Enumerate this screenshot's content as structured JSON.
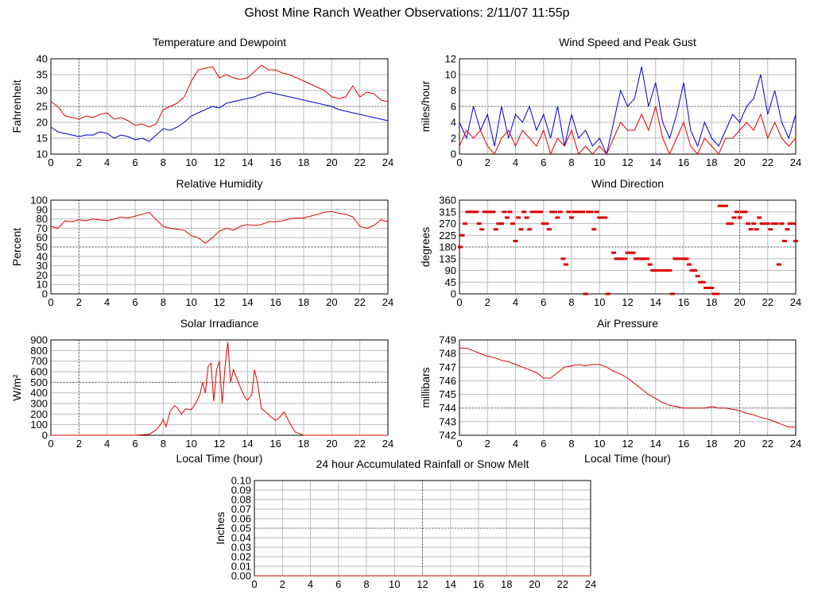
{
  "page": {
    "title": "Ghost Mine Ranch Weather Observations: 2/11/07 11:55p"
  },
  "chart_data": [
    {
      "id": "temp",
      "type": "line",
      "title": "Temperature and Dewpoint",
      "ylabel": "Fahrenheit",
      "xlabel": "",
      "ylim": [
        10,
        40
      ],
      "ytick_step": 5,
      "ytick_decimals": 0,
      "xlim": [
        0,
        24
      ],
      "xtick_step": 2,
      "series": [
        {
          "color": "#dd0000",
          "x": [
            0,
            0.5,
            1,
            1.5,
            2,
            2.5,
            3,
            3.5,
            4,
            4.5,
            5,
            5.5,
            6,
            6.5,
            7,
            7.5,
            8,
            8.5,
            9,
            9.5,
            10,
            10.5,
            11,
            11.5,
            12,
            12.5,
            13,
            13.5,
            14,
            14.5,
            15,
            15.5,
            16,
            16.5,
            17,
            17.5,
            18,
            18.5,
            19,
            19.5,
            20,
            20.5,
            21,
            21.5,
            22,
            22.5,
            23,
            23.5,
            24
          ],
          "y": [
            26.5,
            25,
            22,
            21.5,
            21,
            22,
            21.5,
            22.5,
            23,
            21,
            21.5,
            20.5,
            19,
            19.5,
            18.5,
            19.5,
            24,
            25,
            26,
            28,
            33,
            36.5,
            37,
            37.5,
            34,
            35,
            34,
            33.5,
            34,
            36,
            38,
            36.5,
            36.5,
            35.5,
            35,
            34,
            33,
            32,
            31,
            30,
            28,
            27.5,
            28,
            31.5,
            28,
            29.5,
            29,
            27,
            26.5
          ]
        },
        {
          "color": "#0000cc",
          "x": [
            0,
            0.5,
            1,
            1.5,
            2,
            2.5,
            3,
            3.5,
            4,
            4.5,
            5,
            5.5,
            6,
            6.5,
            7,
            7.5,
            8,
            8.5,
            9,
            9.5,
            10,
            10.5,
            11,
            11.5,
            12,
            12.5,
            13,
            13.5,
            14,
            14.5,
            15,
            15.5,
            16,
            16.5,
            17,
            17.5,
            18,
            18.5,
            19,
            19.5,
            20,
            20.5,
            21,
            21.5,
            22,
            22.5,
            23,
            23.5,
            24
          ],
          "y": [
            18.5,
            17,
            16.5,
            16,
            15.5,
            16,
            16,
            17,
            16.5,
            15,
            16,
            15.5,
            14.5,
            15,
            14,
            16,
            18,
            17.5,
            18.5,
            20,
            22,
            23,
            24,
            25,
            24.5,
            26,
            26.5,
            27,
            27.5,
            28,
            29,
            29.5,
            29,
            28.5,
            28,
            27.5,
            27,
            26.5,
            26,
            25.5,
            25,
            24,
            23.5,
            23,
            22.5,
            22,
            21.5,
            21,
            20.5
          ]
        }
      ]
    },
    {
      "id": "wind",
      "type": "line",
      "title": "Wind Speed and Peak Gust",
      "ylabel": "miles/hour",
      "xlabel": "",
      "ylim": [
        0,
        12
      ],
      "ytick_step": 2,
      "ytick_decimals": 0,
      "xlim": [
        0,
        24
      ],
      "xtick_step": 2,
      "series": [
        {
          "color": "#0000cc",
          "x": [
            0,
            0.5,
            1,
            1.5,
            2,
            2.5,
            3,
            3.5,
            4,
            4.5,
            5,
            5.5,
            6,
            6.5,
            7,
            7.5,
            8,
            8.5,
            9,
            9.5,
            10,
            10.5,
            11,
            11.5,
            12,
            12.5,
            13,
            13.5,
            14,
            14.5,
            15,
            15.5,
            16,
            16.5,
            17,
            17.5,
            18,
            18.5,
            19,
            19.5,
            20,
            20.5,
            21,
            21.5,
            22,
            22.5,
            23,
            23.5,
            24
          ],
          "y": [
            4,
            2,
            6,
            3,
            5,
            1,
            6,
            2,
            5,
            4,
            6,
            3,
            5,
            2,
            6,
            1,
            5,
            2,
            3,
            1,
            2,
            0,
            4,
            8,
            6,
            7,
            11,
            6,
            9,
            4,
            2,
            5,
            9,
            3,
            1,
            4,
            2,
            1,
            3,
            5,
            4,
            6,
            7,
            10,
            5,
            8,
            4,
            2,
            5
          ]
        },
        {
          "color": "#dd0000",
          "x": [
            0,
            0.5,
            1,
            1.5,
            2,
            2.5,
            3,
            3.5,
            4,
            4.5,
            5,
            5.5,
            6,
            6.5,
            7,
            7.5,
            8,
            8.5,
            9,
            9.5,
            10,
            10.5,
            11,
            11.5,
            12,
            12.5,
            13,
            13.5,
            14,
            14.5,
            15,
            15.5,
            16,
            16.5,
            17,
            17.5,
            18,
            18.5,
            19,
            19.5,
            20,
            20.5,
            21,
            21.5,
            22,
            22.5,
            23,
            23.5,
            24
          ],
          "y": [
            1,
            3,
            2,
            3,
            1,
            0,
            2,
            3,
            1,
            3,
            2,
            1,
            3,
            0,
            2,
            1,
            3,
            0,
            1,
            0,
            1,
            0,
            2,
            4,
            3,
            3,
            5,
            3,
            6,
            2,
            0,
            2,
            4,
            1,
            0,
            2,
            1,
            0,
            2,
            2,
            3,
            4,
            3,
            5,
            2,
            4,
            2,
            1,
            2
          ]
        }
      ]
    },
    {
      "id": "humidity",
      "type": "line",
      "title": "Relative Humidity",
      "ylabel": "Percent",
      "xlabel": "",
      "ylim": [
        0,
        100
      ],
      "ytick_step": 10,
      "ytick_decimals": 0,
      "xlim": [
        0,
        24
      ],
      "xtick_step": 2,
      "series": [
        {
          "color": "#dd0000",
          "x": [
            0,
            0.5,
            1,
            1.5,
            2,
            2.5,
            3,
            3.5,
            4,
            4.5,
            5,
            5.5,
            6,
            6.5,
            7,
            7.5,
            8,
            8.5,
            9,
            9.5,
            10,
            10.5,
            11,
            11.5,
            12,
            12.5,
            13,
            13.5,
            14,
            14.5,
            15,
            15.5,
            16,
            16.5,
            17,
            17.5,
            18,
            18.5,
            19,
            19.5,
            20,
            20.5,
            21,
            21.5,
            22,
            22.5,
            23,
            23.5,
            24
          ],
          "y": [
            72,
            70,
            78,
            77,
            79,
            78,
            80,
            79,
            78,
            80,
            82,
            81,
            83,
            85,
            87,
            79,
            72,
            70,
            69,
            68,
            62,
            60,
            54,
            60,
            67,
            70,
            68,
            72,
            74,
            73,
            74,
            77,
            77,
            78,
            80,
            81,
            81,
            83,
            85,
            87,
            88,
            86,
            85,
            82,
            72,
            70,
            73,
            79,
            77
          ]
        }
      ]
    },
    {
      "id": "direction",
      "type": "scatter",
      "title": "Wind Direction",
      "ylabel": "degrees",
      "xlabel": "",
      "ylim": [
        0,
        360
      ],
      "ytick_step": 45,
      "ytick_decimals": 0,
      "xlim": [
        0,
        24
      ],
      "xtick_step": 2,
      "series": [
        {
          "color": "#dd0000",
          "x": [
            0.05,
            0.2,
            0.4,
            0.6,
            0.8,
            1.0,
            1.2,
            1.4,
            1.6,
            1.8,
            2.0,
            2.2,
            2.4,
            2.6,
            2.8,
            3.0,
            3.2,
            3.4,
            3.6,
            3.8,
            4.0,
            4.2,
            4.4,
            4.6,
            4.8,
            5.0,
            5.2,
            5.4,
            5.6,
            5.8,
            6.0,
            6.2,
            6.4,
            6.6,
            6.8,
            7.0,
            7.2,
            7.4,
            7.6,
            7.8,
            8.0,
            8.2,
            8.4,
            8.6,
            8.8,
            9.0,
            9.2,
            9.4,
            9.6,
            9.8,
            10.0,
            10.2,
            10.4,
            10.6,
            11.0,
            11.2,
            11.4,
            11.6,
            11.8,
            12.0,
            12.2,
            12.4,
            12.6,
            12.8,
            13.0,
            13.2,
            13.4,
            13.6,
            13.8,
            14.0,
            14.2,
            14.4,
            14.6,
            14.8,
            15.0,
            15.2,
            15.4,
            15.6,
            15.8,
            16.0,
            16.2,
            16.4,
            16.6,
            16.8,
            17.0,
            17.2,
            17.4,
            17.6,
            17.8,
            18.0,
            18.2,
            18.4,
            18.6,
            18.8,
            19.0,
            19.2,
            19.4,
            19.6,
            19.8,
            20.0,
            20.2,
            20.4,
            20.6,
            20.8,
            21.0,
            21.2,
            21.4,
            21.6,
            21.8,
            22.0,
            22.2,
            22.4,
            22.6,
            22.8,
            23.0,
            23.2,
            23.4,
            23.6,
            23.8,
            24.0
          ],
          "y": [
            180,
            225,
            270,
            315,
            315,
            315,
            315,
            270,
            248,
            315,
            315,
            315,
            315,
            248,
            270,
            270,
            315,
            293,
            315,
            270,
            203,
            293,
            248,
            315,
            293,
            248,
            315,
            315,
            315,
            315,
            270,
            270,
            248,
            315,
            315,
            293,
            315,
            135,
            113,
            315,
            293,
            315,
            315,
            315,
            315,
            0,
            315,
            315,
            248,
            315,
            293,
            293,
            293,
            0,
            158,
            135,
            135,
            135,
            135,
            158,
            158,
            158,
            135,
            135,
            135,
            135,
            135,
            113,
            90,
            90,
            90,
            90,
            90,
            90,
            90,
            0,
            135,
            135,
            135,
            135,
            135,
            113,
            90,
            90,
            68,
            45,
            45,
            23,
            23,
            23,
            0,
            0,
            338,
            338,
            338,
            270,
            270,
            293,
            315,
            293,
            315,
            315,
            270,
            248,
            270,
            248,
            293,
            270,
            270,
            270,
            248,
            270,
            270,
            113,
            270,
            203,
            248,
            270,
            270,
            203
          ]
        }
      ]
    },
    {
      "id": "solar",
      "type": "line",
      "title": "Solar Irradiance",
      "ylabel": "W/m²",
      "xlabel": "Local Time (hour)",
      "ylim": [
        0,
        900
      ],
      "ytick_step": 100,
      "ytick_decimals": 0,
      "xlim": [
        0,
        24
      ],
      "xtick_step": 2,
      "series": [
        {
          "color": "#dd0000",
          "x": [
            0,
            6,
            7,
            7.5,
            7.8,
            8.0,
            8.2,
            8.5,
            8.8,
            9.0,
            9.3,
            9.6,
            10.0,
            10.3,
            10.6,
            10.8,
            11.0,
            11.2,
            11.4,
            11.6,
            11.8,
            12.0,
            12.2,
            12.4,
            12.6,
            12.8,
            13.0,
            13.2,
            13.5,
            13.8,
            14.0,
            14.3,
            14.5,
            14.7,
            15.0,
            15.3,
            15.6,
            16.0,
            16.3,
            16.6,
            17.0,
            17.4,
            18,
            24
          ],
          "y": [
            0,
            0,
            10,
            50,
            100,
            150,
            80,
            230,
            280,
            260,
            200,
            250,
            240,
            300,
            380,
            500,
            400,
            650,
            680,
            320,
            620,
            700,
            300,
            650,
            880,
            500,
            620,
            550,
            450,
            360,
            330,
            380,
            620,
            500,
            250,
            220,
            180,
            140,
            170,
            220,
            120,
            30,
            0,
            0
          ]
        }
      ]
    },
    {
      "id": "pressure",
      "type": "line",
      "title": "Air Pressure",
      "ylabel": "millibars",
      "xlabel": "Local Time (hour)",
      "ylim": [
        742,
        749
      ],
      "ytick_step": 1,
      "ytick_decimals": 0,
      "xlim": [
        0,
        24
      ],
      "xtick_step": 2,
      "series": [
        {
          "color": "#dd0000",
          "x": [
            0,
            0.5,
            1,
            1.5,
            2,
            2.5,
            3,
            3.5,
            4,
            4.5,
            5,
            5.5,
            6,
            6.5,
            7,
            7.5,
            8,
            8.5,
            9,
            9.5,
            10,
            10.5,
            11,
            11.5,
            12,
            12.5,
            13,
            13.5,
            14,
            14.5,
            15,
            15.5,
            16,
            16.5,
            17,
            17.5,
            18,
            18.5,
            19,
            19.5,
            20,
            20.5,
            21,
            21.5,
            22,
            22.5,
            23,
            23.5,
            24
          ],
          "y": [
            748.4,
            748.4,
            748.2,
            748.0,
            747.8,
            747.7,
            747.5,
            747.4,
            747.2,
            747.0,
            746.8,
            746.6,
            746.2,
            746.2,
            746.6,
            747.0,
            747.1,
            747.2,
            747.1,
            747.2,
            747.2,
            747.0,
            746.7,
            746.5,
            746.2,
            745.8,
            745.4,
            745.0,
            744.7,
            744.4,
            744.2,
            744.1,
            744.0,
            744.0,
            744.0,
            744.0,
            744.1,
            744.0,
            744.0,
            743.9,
            743.8,
            743.6,
            743.5,
            743.3,
            743.2,
            743.0,
            742.8,
            742.6,
            742.6
          ]
        }
      ]
    },
    {
      "id": "rain",
      "type": "line",
      "title": "24 hour Accumulated Rainfall or Snow Melt",
      "ylabel": "Inches",
      "xlabel": "",
      "ylim": [
        0,
        0.1
      ],
      "ytick_step": 0.01,
      "ytick_decimals": 2,
      "xlim": [
        0,
        24
      ],
      "xtick_step": 2,
      "series": [
        {
          "color": "#dd0000",
          "x": [
            0,
            24
          ],
          "y": [
            0,
            0
          ]
        }
      ]
    }
  ]
}
